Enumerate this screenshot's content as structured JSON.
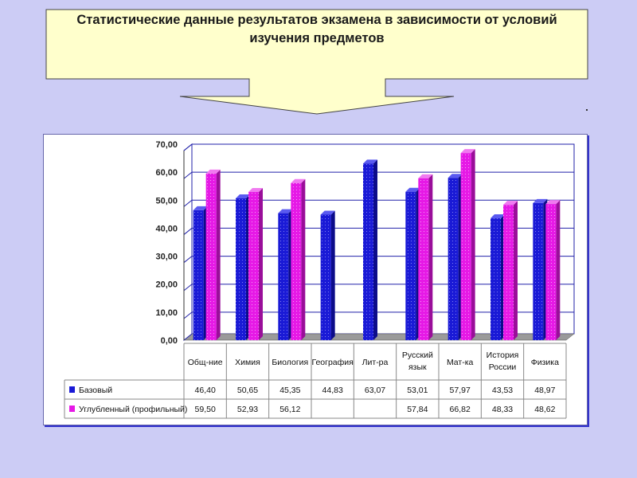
{
  "title": "Статистические данные результатов экзамена в зависимости от условий изучения предметов",
  "colors": {
    "background": "#ccccf5",
    "callout_fill": "#ffffcc",
    "series_base": "#1a1ad6",
    "series_advanced": "#e619e6",
    "grid": "#2222aa"
  },
  "chart_data": {
    "type": "bar",
    "categories": [
      "Общ-ние",
      "Химия",
      "Биология",
      "География",
      "Лит-ра",
      "Русский язык",
      "Мат-ка",
      "История России",
      "Физика"
    ],
    "series": [
      {
        "name": "Базовый",
        "values": [
          46.4,
          50.65,
          45.35,
          44.83,
          63.07,
          53.01,
          57.97,
          43.53,
          48.97
        ]
      },
      {
        "name": "Углубленный (профильный)",
        "values": [
          59.5,
          52.93,
          56.12,
          null,
          null,
          57.84,
          66.82,
          48.33,
          48.62
        ]
      }
    ],
    "value_labels": [
      [
        "46,40",
        "50,65",
        "45,35",
        "44,83",
        "63,07",
        "53,01",
        "57,97",
        "43,53",
        "48,97"
      ],
      [
        "59,50",
        "52,93",
        "56,12",
        "",
        "",
        "57,84",
        "66,82",
        "48,33",
        "48,62"
      ]
    ],
    "yticks": [
      "0,00",
      "10,00",
      "20,00",
      "30,00",
      "40,00",
      "50,00",
      "60,00",
      "70,00"
    ],
    "ylim": [
      0,
      70
    ],
    "grid": true,
    "legend": "data-table"
  }
}
